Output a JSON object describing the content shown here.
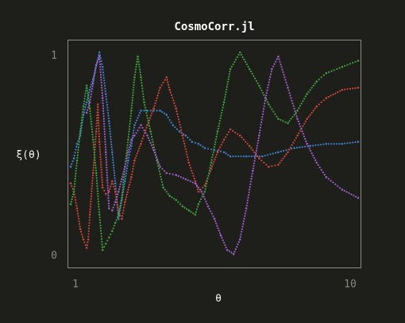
{
  "chart_data": {
    "type": "scatter",
    "title": "CosmoCorr.jl",
    "xlabel": "θ",
    "ylabel": "ξ(θ)",
    "xlim": [
      1,
      10
    ],
    "ylim": [
      0,
      1
    ],
    "x_ticks": [
      {
        "value": 1,
        "label": "1"
      },
      {
        "value": 10,
        "label": "10"
      }
    ],
    "y_ticks": [
      {
        "value": 0,
        "label": "0"
      },
      {
        "value": 1,
        "label": "1"
      }
    ],
    "grid": false,
    "legend": "none",
    "series": [
      {
        "color": "#3e7fc9",
        "points": [
          [
            1.0,
            0.45
          ],
          [
            1.1,
            0.49
          ],
          [
            1.2,
            0.56
          ],
          [
            1.3,
            0.6
          ],
          [
            1.4,
            0.7
          ],
          [
            1.5,
            0.76
          ],
          [
            1.6,
            0.82
          ],
          [
            1.7,
            0.87
          ],
          [
            1.9,
            1.0
          ],
          [
            2.0,
            0.93
          ],
          [
            2.1,
            0.8
          ],
          [
            2.2,
            0.67
          ],
          [
            2.3,
            0.52
          ],
          [
            2.4,
            0.37
          ],
          [
            2.5,
            0.2
          ],
          [
            2.6,
            0.29
          ],
          [
            2.7,
            0.38
          ],
          [
            2.8,
            0.48
          ],
          [
            2.9,
            0.55
          ],
          [
            3.0,
            0.65
          ],
          [
            3.2,
            0.72
          ],
          [
            3.4,
            0.72
          ],
          [
            3.6,
            0.72
          ],
          [
            3.8,
            0.72
          ],
          [
            4.0,
            0.7
          ],
          [
            4.2,
            0.65
          ],
          [
            4.4,
            0.62
          ],
          [
            4.6,
            0.6
          ],
          [
            4.8,
            0.57
          ],
          [
            5.0,
            0.56
          ],
          [
            5.2,
            0.54
          ],
          [
            5.5,
            0.53
          ],
          [
            5.8,
            0.52
          ],
          [
            6.0,
            0.5
          ],
          [
            6.5,
            0.5
          ],
          [
            7.0,
            0.5
          ],
          [
            7.5,
            0.52
          ],
          [
            8.0,
            0.54
          ],
          [
            8.5,
            0.55
          ],
          [
            9.0,
            0.56
          ],
          [
            9.5,
            0.56
          ],
          [
            10.0,
            0.57
          ]
        ]
      },
      {
        "color": "#c9473a",
        "points": [
          [
            1.0,
            0.37
          ],
          [
            1.1,
            0.33
          ],
          [
            1.2,
            0.25
          ],
          [
            1.3,
            0.15
          ],
          [
            1.4,
            0.1
          ],
          [
            1.5,
            0.06
          ],
          [
            1.55,
            0.1
          ],
          [
            1.6,
            0.22
          ],
          [
            1.7,
            0.42
          ],
          [
            1.8,
            0.62
          ],
          [
            1.85,
            0.75
          ],
          [
            1.9,
            0.57
          ],
          [
            2.0,
            0.35
          ],
          [
            2.1,
            0.32
          ],
          [
            2.2,
            0.33
          ],
          [
            2.3,
            0.38
          ],
          [
            2.4,
            0.33
          ],
          [
            2.5,
            0.23
          ],
          [
            2.6,
            0.2
          ],
          [
            2.7,
            0.28
          ],
          [
            2.9,
            0.4
          ],
          [
            3.0,
            0.48
          ],
          [
            3.2,
            0.56
          ],
          [
            3.4,
            0.65
          ],
          [
            3.6,
            0.73
          ],
          [
            3.8,
            0.83
          ],
          [
            4.0,
            0.88
          ],
          [
            4.1,
            0.82
          ],
          [
            4.3,
            0.73
          ],
          [
            4.5,
            0.6
          ],
          [
            4.7,
            0.47
          ],
          [
            4.9,
            0.38
          ],
          [
            5.0,
            0.33
          ],
          [
            5.2,
            0.36
          ],
          [
            5.4,
            0.44
          ],
          [
            5.6,
            0.52
          ],
          [
            5.8,
            0.58
          ],
          [
            6.0,
            0.63
          ],
          [
            6.3,
            0.6
          ],
          [
            6.6,
            0.55
          ],
          [
            6.9,
            0.49
          ],
          [
            7.2,
            0.45
          ],
          [
            7.5,
            0.46
          ],
          [
            7.8,
            0.52
          ],
          [
            8.1,
            0.6
          ],
          [
            8.4,
            0.68
          ],
          [
            8.7,
            0.74
          ],
          [
            9.0,
            0.78
          ],
          [
            9.5,
            0.82
          ],
          [
            10.0,
            0.83
          ]
        ]
      },
      {
        "color": "#3f9e3c",
        "points": [
          [
            1.0,
            0.27
          ],
          [
            1.1,
            0.33
          ],
          [
            1.2,
            0.48
          ],
          [
            1.3,
            0.62
          ],
          [
            1.4,
            0.74
          ],
          [
            1.5,
            0.84
          ],
          [
            1.6,
            0.73
          ],
          [
            1.7,
            0.58
          ],
          [
            1.8,
            0.42
          ],
          [
            1.9,
            0.22
          ],
          [
            2.0,
            0.05
          ],
          [
            2.1,
            0.08
          ],
          [
            2.2,
            0.11
          ],
          [
            2.3,
            0.14
          ],
          [
            2.4,
            0.18
          ],
          [
            2.5,
            0.22
          ],
          [
            2.6,
            0.3
          ],
          [
            2.7,
            0.45
          ],
          [
            2.8,
            0.58
          ],
          [
            2.9,
            0.72
          ],
          [
            3.0,
            0.88
          ],
          [
            3.1,
            0.98
          ],
          [
            3.2,
            0.88
          ],
          [
            3.3,
            0.76
          ],
          [
            3.5,
            0.62
          ],
          [
            3.7,
            0.48
          ],
          [
            3.9,
            0.35
          ],
          [
            4.1,
            0.31
          ],
          [
            4.3,
            0.29
          ],
          [
            4.5,
            0.26
          ],
          [
            4.7,
            0.24
          ],
          [
            4.9,
            0.22
          ],
          [
            5.0,
            0.27
          ],
          [
            5.2,
            0.33
          ],
          [
            5.4,
            0.47
          ],
          [
            5.6,
            0.62
          ],
          [
            5.8,
            0.76
          ],
          [
            6.0,
            0.92
          ],
          [
            6.3,
            1.0
          ],
          [
            6.6,
            0.92
          ],
          [
            6.9,
            0.84
          ],
          [
            7.2,
            0.75
          ],
          [
            7.5,
            0.68
          ],
          [
            7.8,
            0.66
          ],
          [
            8.1,
            0.72
          ],
          [
            8.4,
            0.8
          ],
          [
            8.7,
            0.86
          ],
          [
            9.0,
            0.9
          ],
          [
            9.5,
            0.93
          ],
          [
            10.0,
            0.96
          ]
        ]
      },
      {
        "color": "#9e5ec9",
        "points": [
          [
            1.5,
            0.71
          ],
          [
            1.6,
            0.76
          ],
          [
            1.7,
            0.85
          ],
          [
            1.8,
            0.94
          ],
          [
            1.9,
            0.98
          ],
          [
            2.0,
            0.78
          ],
          [
            2.1,
            0.52
          ],
          [
            2.2,
            0.25
          ],
          [
            2.3,
            0.24
          ],
          [
            2.4,
            0.28
          ],
          [
            2.5,
            0.33
          ],
          [
            2.6,
            0.39
          ],
          [
            2.7,
            0.45
          ],
          [
            2.8,
            0.52
          ],
          [
            2.9,
            0.58
          ],
          [
            3.0,
            0.6
          ],
          [
            3.2,
            0.65
          ],
          [
            3.4,
            0.6
          ],
          [
            3.6,
            0.53
          ],
          [
            3.8,
            0.45
          ],
          [
            4.0,
            0.42
          ],
          [
            4.3,
            0.41
          ],
          [
            4.6,
            0.39
          ],
          [
            4.9,
            0.37
          ],
          [
            5.1,
            0.33
          ],
          [
            5.3,
            0.26
          ],
          [
            5.5,
            0.2
          ],
          [
            5.7,
            0.12
          ],
          [
            5.9,
            0.05
          ],
          [
            6.1,
            0.03
          ],
          [
            6.3,
            0.1
          ],
          [
            6.5,
            0.25
          ],
          [
            6.7,
            0.43
          ],
          [
            6.9,
            0.6
          ],
          [
            7.1,
            0.78
          ],
          [
            7.3,
            0.92
          ],
          [
            7.5,
            0.98
          ],
          [
            7.8,
            0.83
          ],
          [
            8.1,
            0.68
          ],
          [
            8.4,
            0.56
          ],
          [
            8.7,
            0.47
          ],
          [
            9.0,
            0.4
          ],
          [
            9.5,
            0.34
          ],
          [
            10.0,
            0.3
          ]
        ]
      }
    ]
  }
}
